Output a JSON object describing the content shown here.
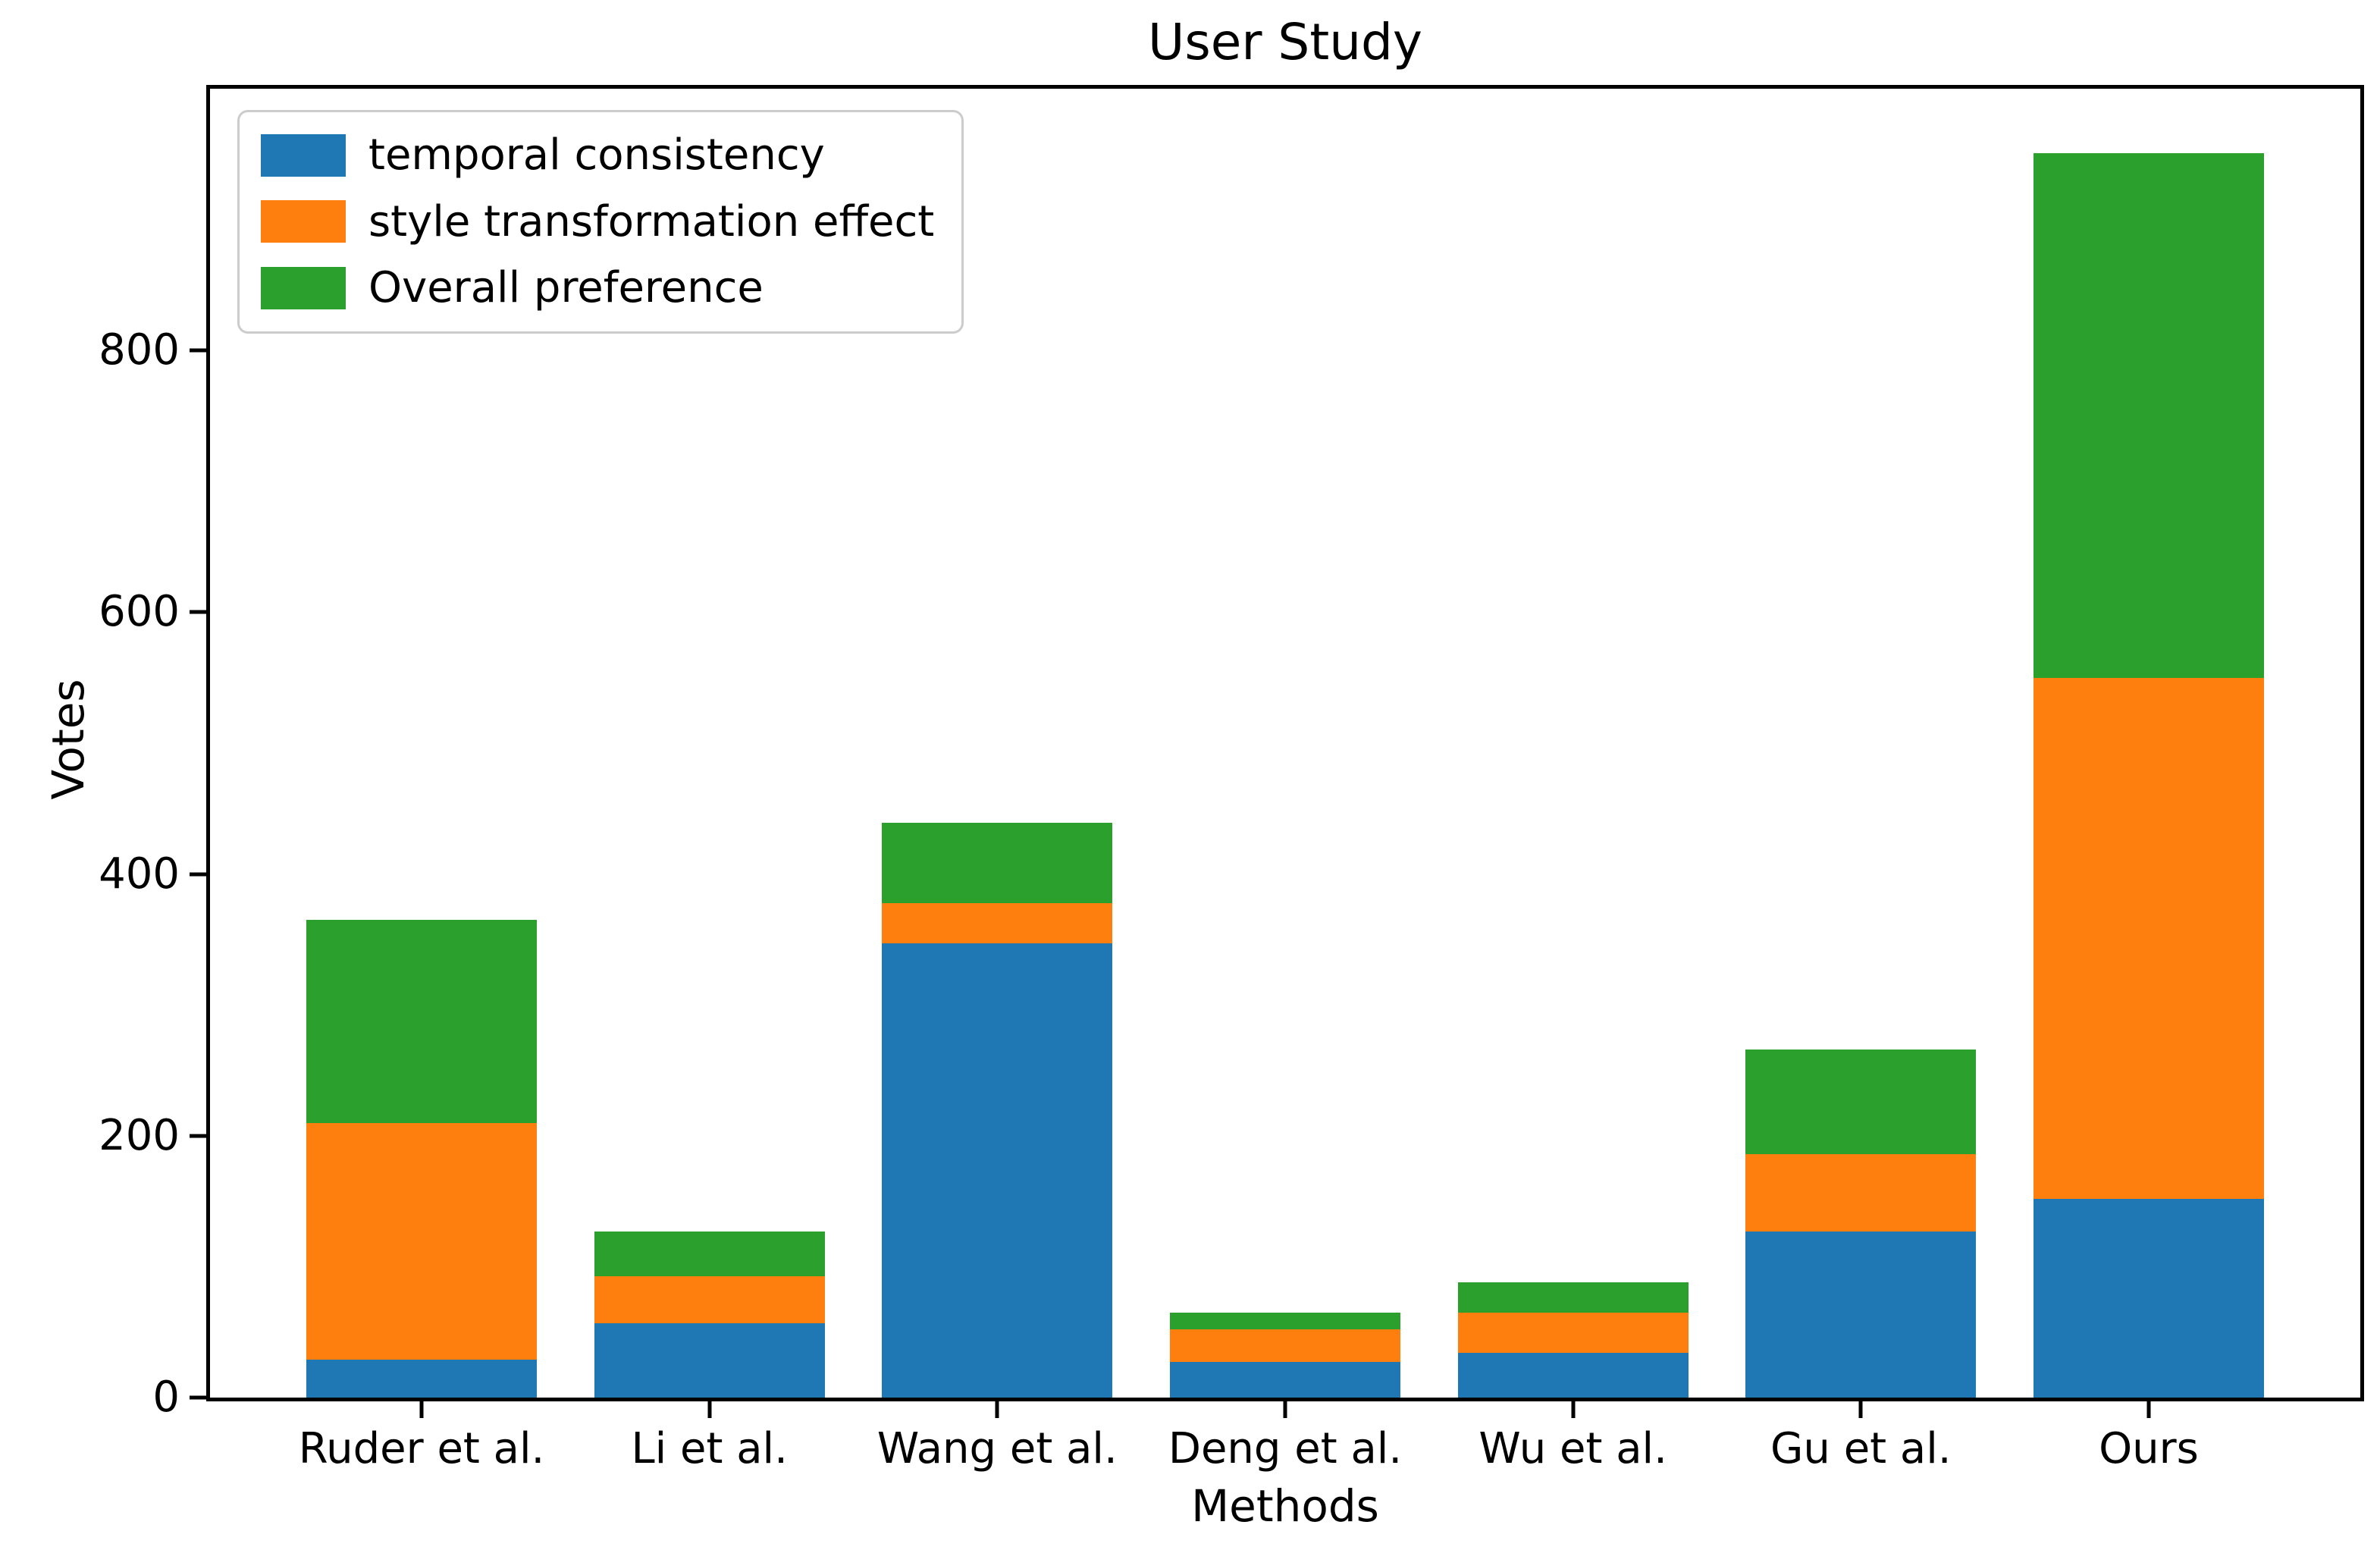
{
  "figure": {
    "title": "User Study",
    "xlabel": "Methods",
    "ylabel": "Votes"
  },
  "chart_data": {
    "type": "bar",
    "stacked": true,
    "title": "User Study",
    "xlabel": "Methods",
    "ylabel": "Votes",
    "categories": [
      "Ruder et al.",
      "Li et al.",
      "Wang et al.",
      "Deng et al.",
      "Wu et al.",
      "Gu et al.",
      "Ours"
    ],
    "series": [
      {
        "name": "temporal consistency",
        "color": "#1f77b4",
        "values": [
          29,
          57,
          347,
          27,
          34,
          127,
          152
        ]
      },
      {
        "name": "style transformation effect",
        "color": "#ff7f0e",
        "values": [
          181,
          36,
          31,
          25,
          31,
          59,
          398
        ]
      },
      {
        "name": "Overall preference",
        "color": "#2ca02c",
        "values": [
          155,
          34,
          61,
          13,
          23,
          80,
          401
        ]
      }
    ],
    "stack_totals": [
      365,
      127,
      439,
      65,
      88,
      266,
      951
    ],
    "ylim": [
      0,
      1000
    ],
    "yticks": [
      0,
      200,
      400,
      600,
      800
    ],
    "grid": false,
    "legend_position": "upper left"
  }
}
